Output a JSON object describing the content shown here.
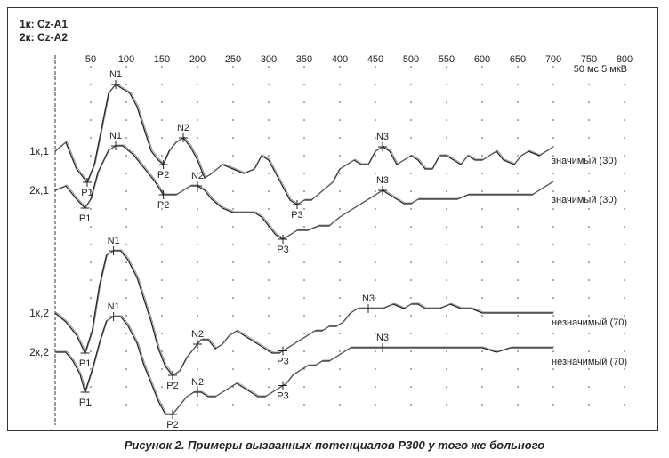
{
  "header": {
    "channel_1": "1к: Cz-A1",
    "channel_2": "2к: Cz-A2",
    "scale_label": "50 мс 5 мкВ"
  },
  "caption": "Рисунок 2. Примеры вызванных потенциалов Р300 у того же больного",
  "chart_data": {
    "type": "line",
    "title": "",
    "xlabel": "",
    "ylabel": "",
    "x_unit": "мс",
    "xlim": [
      0,
      800
    ],
    "x_ticks": [
      50,
      100,
      150,
      200,
      250,
      300,
      350,
      400,
      450,
      500,
      550,
      600,
      650,
      700,
      750,
      800
    ],
    "grid": "dotted",
    "series": [
      {
        "name": "1к,1",
        "significance": "значимый (30)",
        "points": [
          [
            0,
            0
          ],
          [
            15,
            2
          ],
          [
            30,
            -4
          ],
          [
            45,
            -7
          ],
          [
            55,
            -3
          ],
          [
            65,
            5
          ],
          [
            75,
            13
          ],
          [
            85,
            15
          ],
          [
            95,
            14
          ],
          [
            105,
            13
          ],
          [
            115,
            10
          ],
          [
            125,
            5
          ],
          [
            135,
            0
          ],
          [
            145,
            -2
          ],
          [
            152,
            -3
          ],
          [
            160,
            0
          ],
          [
            170,
            2
          ],
          [
            180,
            3
          ],
          [
            190,
            1
          ],
          [
            200,
            -2
          ],
          [
            210,
            -6
          ],
          [
            220,
            -5
          ],
          [
            235,
            -3
          ],
          [
            250,
            -4
          ],
          [
            265,
            -5
          ],
          [
            280,
            -4
          ],
          [
            290,
            -1
          ],
          [
            300,
            -2
          ],
          [
            310,
            -5
          ],
          [
            320,
            -8
          ],
          [
            330,
            -11
          ],
          [
            340,
            -12
          ],
          [
            350,
            -11
          ],
          [
            360,
            -11
          ],
          [
            375,
            -9
          ],
          [
            390,
            -7
          ],
          [
            400,
            -4
          ],
          [
            410,
            -3
          ],
          [
            420,
            -2
          ],
          [
            430,
            -3
          ],
          [
            440,
            -3
          ],
          [
            450,
            0
          ],
          [
            460,
            1
          ],
          [
            470,
            0
          ],
          [
            480,
            -3
          ],
          [
            490,
            -2
          ],
          [
            500,
            -1
          ],
          [
            510,
            -2
          ],
          [
            520,
            -4
          ],
          [
            530,
            -4
          ],
          [
            540,
            -1
          ],
          [
            550,
            -1
          ],
          [
            560,
            -2
          ],
          [
            570,
            -3
          ],
          [
            580,
            -1
          ],
          [
            590,
            -2
          ],
          [
            600,
            -2
          ],
          [
            610,
            -1
          ],
          [
            620,
            0
          ],
          [
            630,
            -2
          ],
          [
            645,
            -3
          ],
          [
            655,
            -1
          ],
          [
            665,
            0
          ],
          [
            680,
            -1
          ],
          [
            700,
            1
          ]
        ],
        "markers": [
          {
            "label": "P1",
            "x": 45
          },
          {
            "label": "N1",
            "x": 85
          },
          {
            "label": "P2",
            "x": 152
          },
          {
            "label": "N2",
            "x": 180
          },
          {
            "label": "P3",
            "x": 340
          },
          {
            "label": "N3",
            "x": 460
          }
        ]
      },
      {
        "name": "2к,1",
        "significance": "значимый (30)",
        "points": [
          [
            0,
            0
          ],
          [
            15,
            1
          ],
          [
            30,
            -2
          ],
          [
            42,
            -4
          ],
          [
            50,
            -2
          ],
          [
            60,
            4
          ],
          [
            75,
            9
          ],
          [
            85,
            10
          ],
          [
            95,
            10
          ],
          [
            110,
            8
          ],
          [
            125,
            5
          ],
          [
            140,
            2
          ],
          [
            152,
            -1
          ],
          [
            160,
            -1
          ],
          [
            170,
            -1
          ],
          [
            180,
            0
          ],
          [
            190,
            1
          ],
          [
            200,
            1
          ],
          [
            210,
            0
          ],
          [
            220,
            -2
          ],
          [
            235,
            -4
          ],
          [
            250,
            -5
          ],
          [
            265,
            -5
          ],
          [
            280,
            -5
          ],
          [
            290,
            -6
          ],
          [
            300,
            -8
          ],
          [
            310,
            -10
          ],
          [
            320,
            -11
          ],
          [
            330,
            -10
          ],
          [
            340,
            -9
          ],
          [
            355,
            -9
          ],
          [
            370,
            -8
          ],
          [
            385,
            -8
          ],
          [
            400,
            -6
          ],
          [
            410,
            -5
          ],
          [
            420,
            -4
          ],
          [
            430,
            -3
          ],
          [
            440,
            -2
          ],
          [
            450,
            -1
          ],
          [
            460,
            0
          ],
          [
            470,
            -1
          ],
          [
            480,
            -2
          ],
          [
            490,
            -3
          ],
          [
            500,
            -3
          ],
          [
            510,
            -2
          ],
          [
            520,
            -2
          ],
          [
            535,
            -2
          ],
          [
            550,
            -2
          ],
          [
            565,
            -2
          ],
          [
            580,
            -1
          ],
          [
            600,
            -1
          ],
          [
            620,
            -1
          ],
          [
            640,
            -1
          ],
          [
            655,
            -1
          ],
          [
            670,
            -1
          ],
          [
            690,
            1
          ],
          [
            700,
            2
          ]
        ],
        "markers": [
          {
            "label": "P1",
            "x": 42
          },
          {
            "label": "N1",
            "x": 85
          },
          {
            "label": "P2",
            "x": 152
          },
          {
            "label": "N2",
            "x": 200
          },
          {
            "label": "P3",
            "x": 320
          },
          {
            "label": "N3",
            "x": 460
          }
        ]
      },
      {
        "name": "1к,2",
        "significance": "незначимый (70)",
        "points": [
          [
            0,
            0
          ],
          [
            15,
            -2
          ],
          [
            30,
            -5
          ],
          [
            42,
            -9
          ],
          [
            52,
            -4
          ],
          [
            62,
            6
          ],
          [
            72,
            13
          ],
          [
            82,
            14
          ],
          [
            92,
            14
          ],
          [
            102,
            12
          ],
          [
            115,
            8
          ],
          [
            125,
            3
          ],
          [
            135,
            -2
          ],
          [
            145,
            -8
          ],
          [
            155,
            -12
          ],
          [
            165,
            -14
          ],
          [
            175,
            -13
          ],
          [
            185,
            -10
          ],
          [
            195,
            -8
          ],
          [
            205,
            -6
          ],
          [
            215,
            -6
          ],
          [
            225,
            -8
          ],
          [
            235,
            -7
          ],
          [
            245,
            -5
          ],
          [
            255,
            -4
          ],
          [
            265,
            -5
          ],
          [
            275,
            -6
          ],
          [
            285,
            -7
          ],
          [
            295,
            -8
          ],
          [
            305,
            -9
          ],
          [
            315,
            -9
          ],
          [
            325,
            -8
          ],
          [
            335,
            -7
          ],
          [
            345,
            -6
          ],
          [
            355,
            -5
          ],
          [
            365,
            -4
          ],
          [
            375,
            -4
          ],
          [
            385,
            -3
          ],
          [
            395,
            -3
          ],
          [
            405,
            -2
          ],
          [
            415,
            0
          ],
          [
            425,
            1
          ],
          [
            435,
            1
          ],
          [
            445,
            1
          ],
          [
            460,
            1
          ],
          [
            475,
            2
          ],
          [
            490,
            1
          ],
          [
            500,
            2
          ],
          [
            510,
            2
          ],
          [
            520,
            1
          ],
          [
            530,
            1
          ],
          [
            540,
            1
          ],
          [
            555,
            2
          ],
          [
            570,
            1
          ],
          [
            585,
            1
          ],
          [
            600,
            0
          ],
          [
            620,
            0
          ],
          [
            640,
            0
          ],
          [
            660,
            0
          ],
          [
            680,
            0
          ],
          [
            700,
            0
          ]
        ],
        "markers": [
          {
            "label": "P1",
            "x": 42
          },
          {
            "label": "N1",
            "x": 82
          },
          {
            "label": "P2",
            "x": 165
          },
          {
            "label": "N2",
            "x": 200
          },
          {
            "label": "P3",
            "x": 320
          },
          {
            "label": "N3",
            "x": 440
          }
        ]
      },
      {
        "name": "2к,2",
        "significance": "незначимый (70)",
        "points": [
          [
            0,
            0
          ],
          [
            15,
            0
          ],
          [
            25,
            -2
          ],
          [
            35,
            -5
          ],
          [
            42,
            -9
          ],
          [
            52,
            -4
          ],
          [
            62,
            2
          ],
          [
            72,
            7
          ],
          [
            82,
            8
          ],
          [
            92,
            8
          ],
          [
            102,
            6
          ],
          [
            115,
            2
          ],
          [
            125,
            -3
          ],
          [
            135,
            -7
          ],
          [
            145,
            -11
          ],
          [
            155,
            -14
          ],
          [
            165,
            -14
          ],
          [
            175,
            -12
          ],
          [
            185,
            -10
          ],
          [
            195,
            -9
          ],
          [
            205,
            -9
          ],
          [
            215,
            -10
          ],
          [
            225,
            -10
          ],
          [
            235,
            -9
          ],
          [
            245,
            -8
          ],
          [
            255,
            -7
          ],
          [
            265,
            -8
          ],
          [
            275,
            -9
          ],
          [
            285,
            -10
          ],
          [
            295,
            -10
          ],
          [
            305,
            -9
          ],
          [
            315,
            -8
          ],
          [
            325,
            -7
          ],
          [
            335,
            -5
          ],
          [
            345,
            -4
          ],
          [
            355,
            -3
          ],
          [
            365,
            -3
          ],
          [
            375,
            -2
          ],
          [
            385,
            -2
          ],
          [
            395,
            -1
          ],
          [
            405,
            0
          ],
          [
            415,
            1
          ],
          [
            425,
            1
          ],
          [
            440,
            1
          ],
          [
            455,
            1
          ],
          [
            470,
            1
          ],
          [
            485,
            1
          ],
          [
            500,
            1
          ],
          [
            515,
            1
          ],
          [
            530,
            1
          ],
          [
            545,
            1
          ],
          [
            560,
            1
          ],
          [
            580,
            1
          ],
          [
            600,
            1
          ],
          [
            620,
            0
          ],
          [
            640,
            1
          ],
          [
            660,
            1
          ],
          [
            680,
            1
          ],
          [
            700,
            1
          ]
        ],
        "markers": [
          {
            "label": "P1",
            "x": 42
          },
          {
            "label": "N1",
            "x": 82
          },
          {
            "label": "P2",
            "x": 165
          },
          {
            "label": "N2",
            "x": 200
          },
          {
            "label": "P3",
            "x": 320
          },
          {
            "label": "N3",
            "x": 460
          }
        ]
      }
    ]
  }
}
